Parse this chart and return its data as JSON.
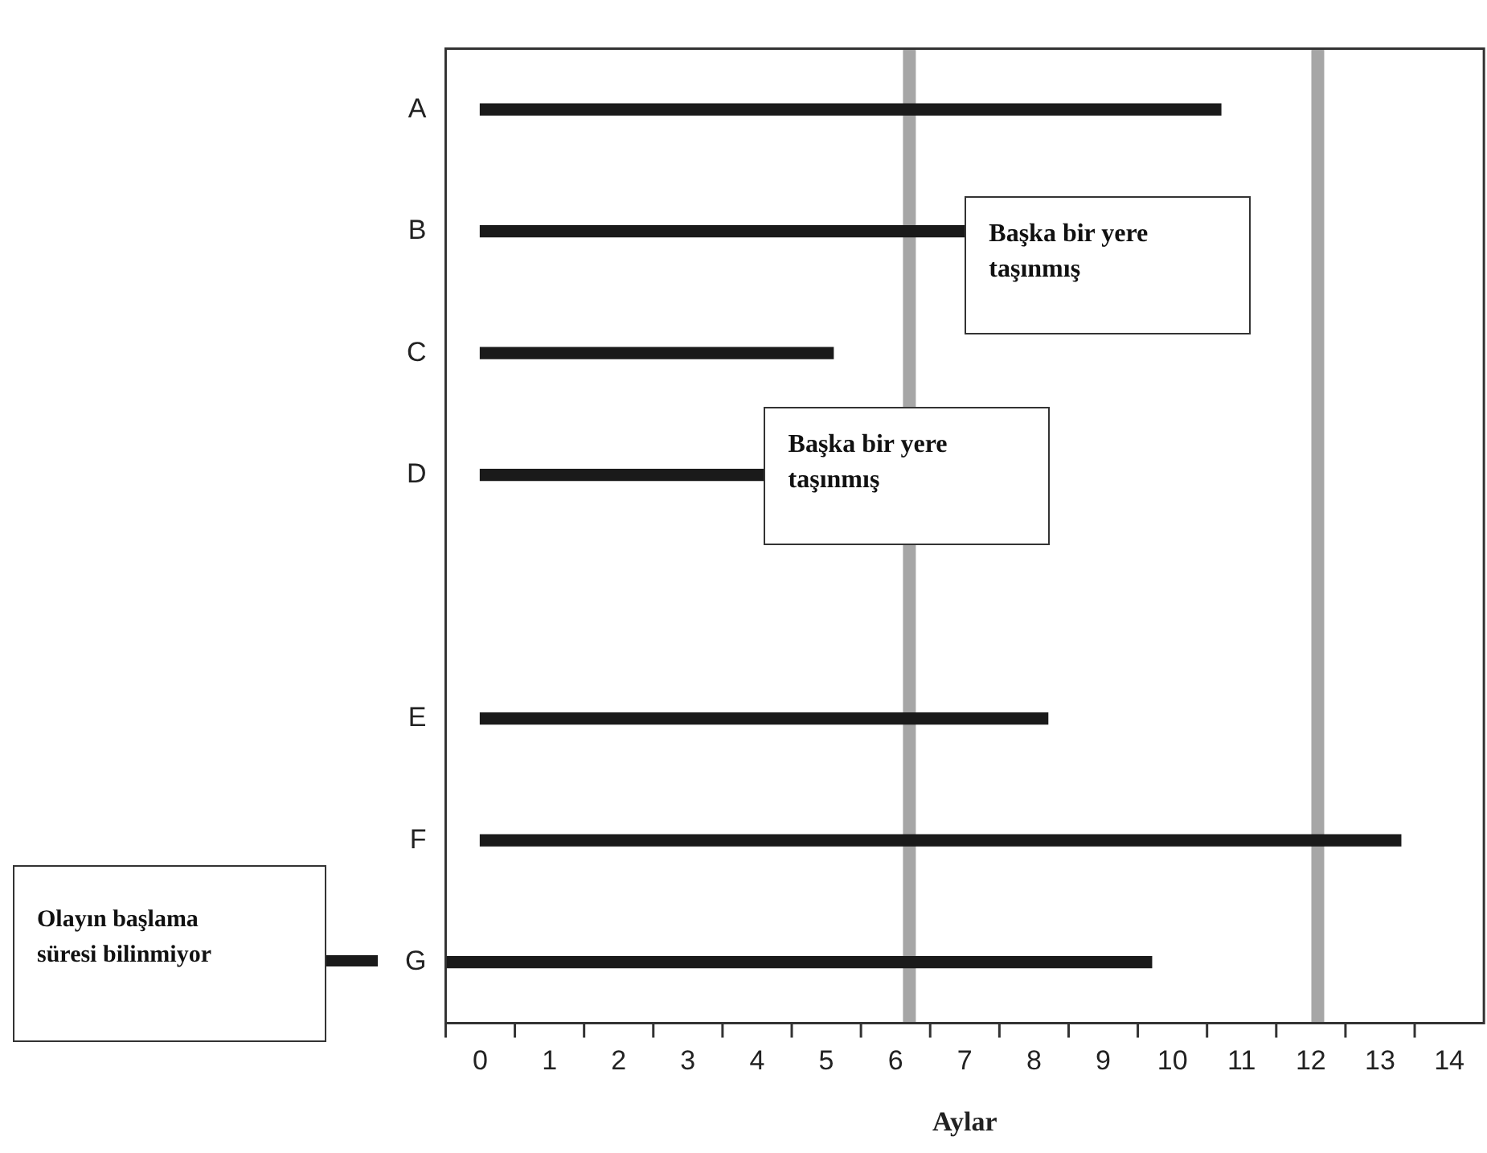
{
  "chart_data": {
    "type": "bar",
    "orientation": "horizontal",
    "xlabel": "Aylar",
    "categories": [
      "A",
      "B",
      "C",
      "D",
      null,
      "E",
      "F",
      "G"
    ],
    "base": [
      0,
      0,
      0,
      0,
      null,
      0,
      0,
      -0.5
    ],
    "values": [
      10.7,
      7.0,
      5.1,
      4.1,
      null,
      8.2,
      13.3,
      10.2
    ],
    "color": "#1a1a1a",
    "xlim": [
      -0.5,
      14.5
    ],
    "xticks": [
      0,
      1,
      2,
      3,
      4,
      5,
      6,
      7,
      8,
      9,
      10,
      11,
      12,
      13,
      14
    ],
    "grid": false,
    "legend": false,
    "ref_lines": [
      {
        "axis": "x",
        "value": 6.2,
        "color": "#a6a6a6"
      },
      {
        "axis": "x",
        "value": 12.1,
        "color": "#a6a6a6"
      }
    ],
    "annotations": [
      {
        "text": "Başka bir yere taşınmış",
        "x": 7.0,
        "y": "B"
      },
      {
        "text": "Başka bir yere taşınmış",
        "x": 4.1,
        "y": "D"
      },
      "Olayın başlama süresi bilinmiyor"
    ]
  }
}
